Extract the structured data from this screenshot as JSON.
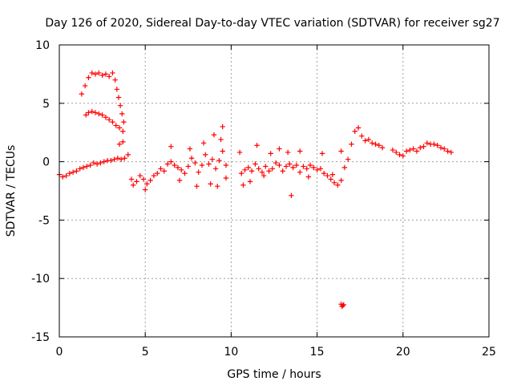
{
  "chart_data": {
    "type": "scatter",
    "title": "Day 126 of 2020, Sidereal Day-to-day VTEC variation (SDTVAR) for receiver sg27",
    "xlabel": "GPS time / hours",
    "ylabel": "SDTVAR / TECUs",
    "xlim": [
      0,
      25
    ],
    "ylim": [
      -15,
      10
    ],
    "xticks": [
      0,
      5,
      10,
      15,
      20,
      25
    ],
    "yticks": [
      -15,
      -10,
      -5,
      0,
      5,
      10
    ],
    "grid": true,
    "marker": "+",
    "color": "#ff0000",
    "series": [
      {
        "name": "main_trace",
        "x": [
          0.0,
          0.2,
          0.4,
          0.6,
          0.8,
          1.0,
          1.2,
          1.4,
          1.6,
          1.8,
          2.0,
          2.2,
          2.4,
          2.6,
          2.8,
          3.0,
          3.2,
          3.4,
          3.6,
          3.8,
          4.0,
          4.2,
          4.3,
          4.5,
          4.7,
          4.9,
          5.1,
          5.3,
          5.5,
          5.7,
          5.9,
          6.1,
          6.3,
          6.5,
          6.7,
          6.9,
          7.1,
          7.3,
          7.5,
          7.7,
          7.9,
          8.1,
          8.3,
          8.5,
          8.7,
          8.9,
          9.1,
          9.3,
          9.5,
          9.7,
          10.6,
          10.8,
          11.0,
          11.2,
          11.4,
          11.6,
          11.8,
          12.0,
          12.2,
          12.4,
          12.6,
          12.8,
          13.0,
          13.2,
          13.4,
          13.6,
          13.8,
          14.0,
          14.2,
          14.4,
          14.6,
          14.8,
          15.0,
          15.2,
          15.4,
          15.6,
          15.8,
          16.0,
          16.2,
          16.4,
          16.6,
          16.8,
          17.0,
          17.2,
          17.4,
          17.6,
          17.8,
          18.0,
          18.2,
          18.4,
          18.6,
          18.8,
          19.4,
          19.6,
          19.8,
          20.0,
          20.2,
          20.4,
          20.6,
          20.8,
          21.0,
          21.2,
          21.4,
          21.6,
          21.8,
          22.0,
          22.2,
          22.4,
          22.6,
          22.8
        ],
        "y": [
          -1.1,
          -1.3,
          -1.2,
          -1.0,
          -0.9,
          -0.8,
          -0.6,
          -0.5,
          -0.4,
          -0.3,
          -0.1,
          -0.2,
          -0.1,
          0.0,
          0.1,
          0.1,
          0.2,
          0.3,
          0.2,
          0.3,
          0.6,
          -1.5,
          -2.0,
          -1.7,
          -1.2,
          -1.5,
          -1.9,
          -1.6,
          -1.2,
          -1.0,
          -0.6,
          -0.8,
          -0.2,
          0.0,
          -0.3,
          -0.5,
          -0.7,
          -1.0,
          -0.4,
          0.3,
          -0.1,
          -0.9,
          -0.3,
          0.6,
          -0.2,
          0.2,
          -0.6,
          0.1,
          0.9,
          -0.3,
          -1.0,
          -0.7,
          -0.5,
          -0.8,
          -0.2,
          -0.6,
          -0.9,
          -0.4,
          -0.8,
          -0.6,
          -0.1,
          -0.3,
          -0.8,
          -0.4,
          -0.2,
          -0.5,
          -0.3,
          -0.9,
          -0.4,
          -0.6,
          -0.3,
          -0.5,
          -0.7,
          -0.6,
          -1.0,
          -1.2,
          -1.5,
          -1.8,
          -2.0,
          -1.6,
          -0.5,
          0.2,
          1.5,
          2.6,
          2.9,
          2.2,
          1.8,
          1.9,
          1.6,
          1.5,
          1.4,
          1.2,
          1.0,
          0.8,
          0.6,
          0.5,
          0.9,
          1.0,
          1.1,
          0.9,
          1.2,
          1.3,
          1.6,
          1.5,
          1.5,
          1.4,
          1.2,
          1.1,
          0.9,
          0.8
        ]
      },
      {
        "name": "upper_arc",
        "x": [
          1.3,
          1.5,
          1.7,
          1.9,
          2.1,
          2.3,
          2.5,
          2.7,
          2.9,
          3.1,
          3.25,
          3.35,
          3.45,
          3.55,
          3.65,
          3.75
        ],
        "y": [
          5.8,
          6.5,
          7.2,
          7.6,
          7.5,
          7.6,
          7.4,
          7.5,
          7.3,
          7.6,
          7.0,
          6.2,
          5.5,
          4.8,
          4.1,
          3.4
        ]
      },
      {
        "name": "lower_arc",
        "x": [
          1.55,
          1.7,
          1.9,
          2.1,
          2.3,
          2.5,
          2.7,
          2.9,
          3.1,
          3.3,
          3.5,
          3.7
        ],
        "y": [
          4.0,
          4.2,
          4.3,
          4.2,
          4.1,
          4.0,
          3.8,
          3.6,
          3.4,
          3.1,
          2.9,
          2.6
        ]
      },
      {
        "name": "bursts",
        "x": [
          3.5,
          3.7,
          5.0,
          6.5,
          7.0,
          7.6,
          8.0,
          8.4,
          8.8,
          9.0,
          9.2,
          9.4,
          9.5,
          9.7,
          10.5,
          10.7,
          11.1,
          11.5,
          11.9,
          12.3,
          12.8,
          13.3,
          13.5,
          14.0,
          14.5,
          15.3,
          15.9,
          16.4
        ],
        "y": [
          1.5,
          1.7,
          -2.4,
          1.3,
          -1.6,
          1.1,
          -2.1,
          1.6,
          -1.9,
          2.3,
          -2.1,
          1.9,
          3.0,
          -1.4,
          0.8,
          -2.0,
          -1.7,
          1.4,
          -1.2,
          0.7,
          1.1,
          0.8,
          -2.9,
          0.9,
          -1.3,
          0.7,
          -1.1,
          0.9
        ]
      },
      {
        "name": "outlier",
        "x": [
          16.4,
          16.45,
          16.5,
          16.55
        ],
        "y": [
          -12.2,
          -12.4,
          -12.3,
          -12.25
        ]
      }
    ]
  }
}
